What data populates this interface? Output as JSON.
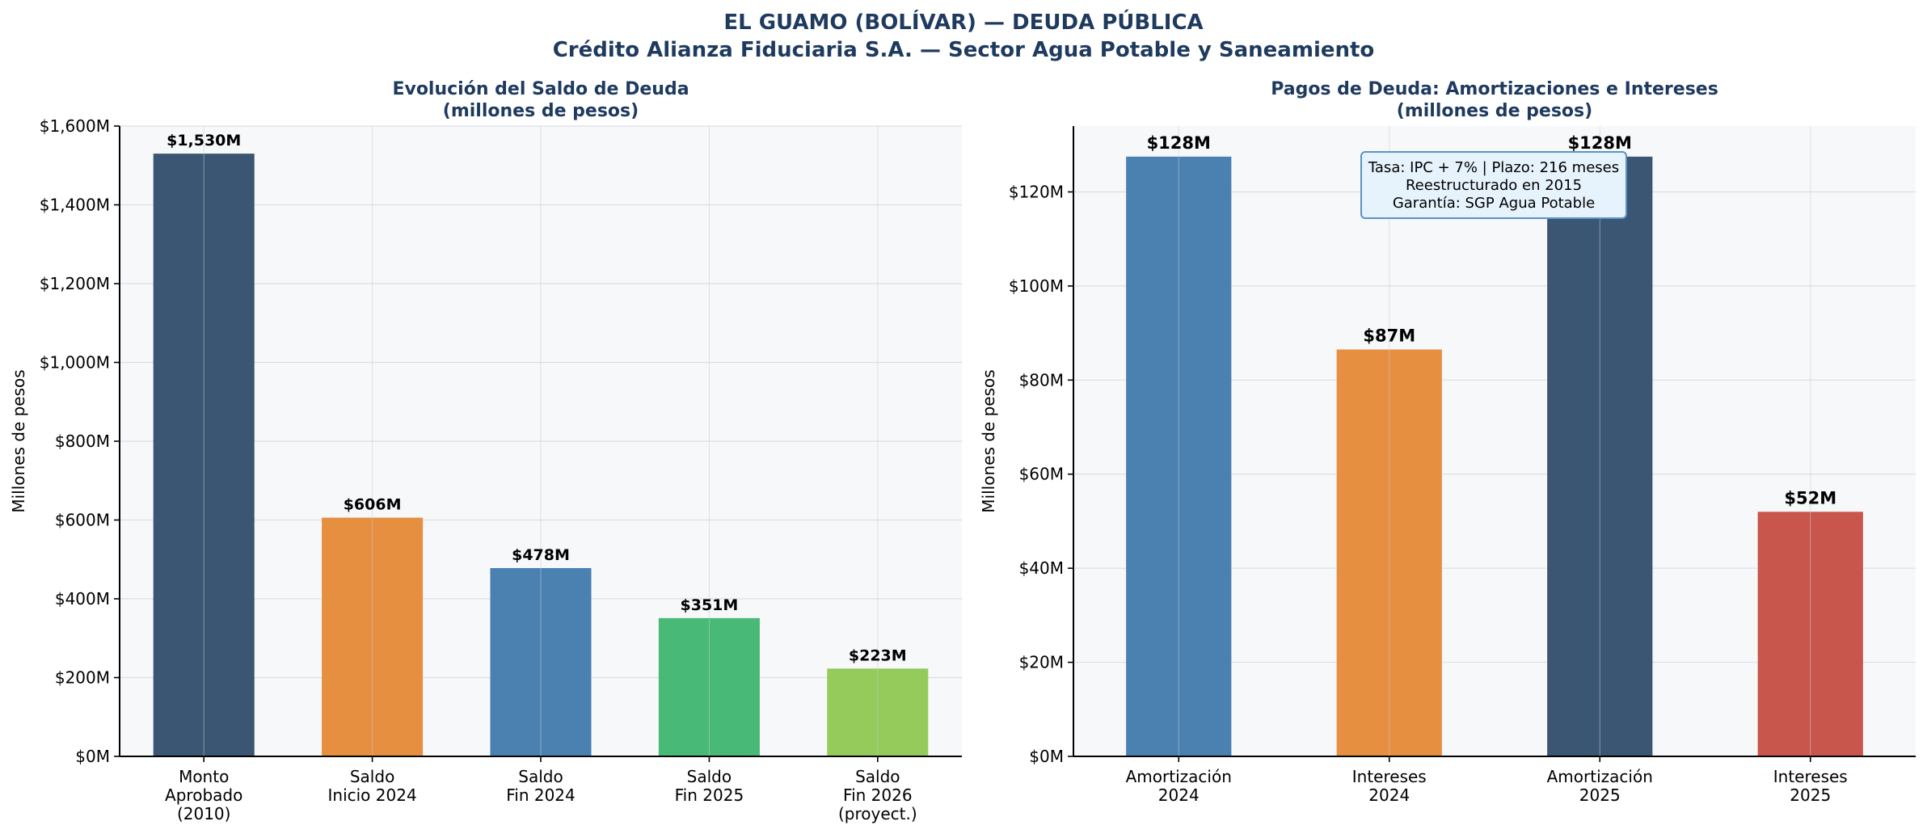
{
  "figure": {
    "title_line1": "EL GUAMO (BOLÍVAR) — DEUDA PÚBLICA",
    "title_line2": "Crédito Alianza Fiduciaria S.A. — Sector Agua Potable y Saneamiento"
  },
  "chart_data": [
    {
      "type": "bar",
      "title_lines": [
        "Evolución del Saldo de Deuda",
        "(millones de pesos)"
      ],
      "xlabel": "",
      "ylabel": "Millones de pesos",
      "ylim": [
        0,
        1600
      ],
      "yticks": [
        0,
        200,
        400,
        600,
        800,
        1000,
        1200,
        1400,
        1600
      ],
      "ytick_labels": [
        "$0M",
        "$200M",
        "$400M",
        "$600M",
        "$800M",
        "$1,000M",
        "$1,200M",
        "$1,400M",
        "$1,600M"
      ],
      "categories": [
        [
          "Monto",
          "Aprobado",
          "(2010)"
        ],
        [
          "Saldo",
          "Inicio 2024"
        ],
        [
          "Saldo",
          "Fin 2024"
        ],
        [
          "Saldo",
          "Fin 2025"
        ],
        [
          "Saldo",
          "Fin 2026",
          "(proyect.)"
        ]
      ],
      "values": [
        1530,
        606,
        478,
        351,
        223
      ],
      "value_labels": [
        "$1,530M",
        "$606M",
        "$478M",
        "$351M",
        "$223M"
      ],
      "colors": [
        "#3b5672",
        "#e68f41",
        "#4a81b1",
        "#48b977",
        "#95cb5b"
      ],
      "grid": true
    },
    {
      "type": "bar",
      "title_lines": [
        "Pagos de Deuda: Amortizaciones e Intereses",
        "(millones de pesos)"
      ],
      "xlabel": "",
      "ylabel": "Millones de pesos",
      "ylim": [
        0,
        134
      ],
      "yticks": [
        0,
        20,
        40,
        60,
        80,
        100,
        120
      ],
      "ytick_labels": [
        "$0M",
        "$20M",
        "$40M",
        "$60M",
        "$80M",
        "$100M",
        "$120M"
      ],
      "categories": [
        [
          "Amortización",
          "2024"
        ],
        [
          "Intereses",
          "2024"
        ],
        [
          "Amortización",
          "2025"
        ],
        [
          "Intereses",
          "2025"
        ]
      ],
      "values": [
        127.5,
        86.5,
        127.5,
        52
      ],
      "value_labels": [
        "$128M",
        "$87M",
        "$128M",
        "$52M"
      ],
      "colors": [
        "#4a81b1",
        "#e68f41",
        "#3b5672",
        "#c8564c"
      ],
      "grid": true,
      "annotation_lines": [
        "Tasa: IPC + 7% | Plazo: 216 meses",
        "Reestructurado en 2015",
        "Garantía: SGP Agua Potable"
      ]
    }
  ],
  "style": {
    "title_color": "#1e3a5f",
    "panel_bg": "#f7f8fa",
    "grid_color": "#dcdfe3",
    "annotation_bg": "#e6f2fc",
    "annotation_border": "#5b93c9"
  }
}
